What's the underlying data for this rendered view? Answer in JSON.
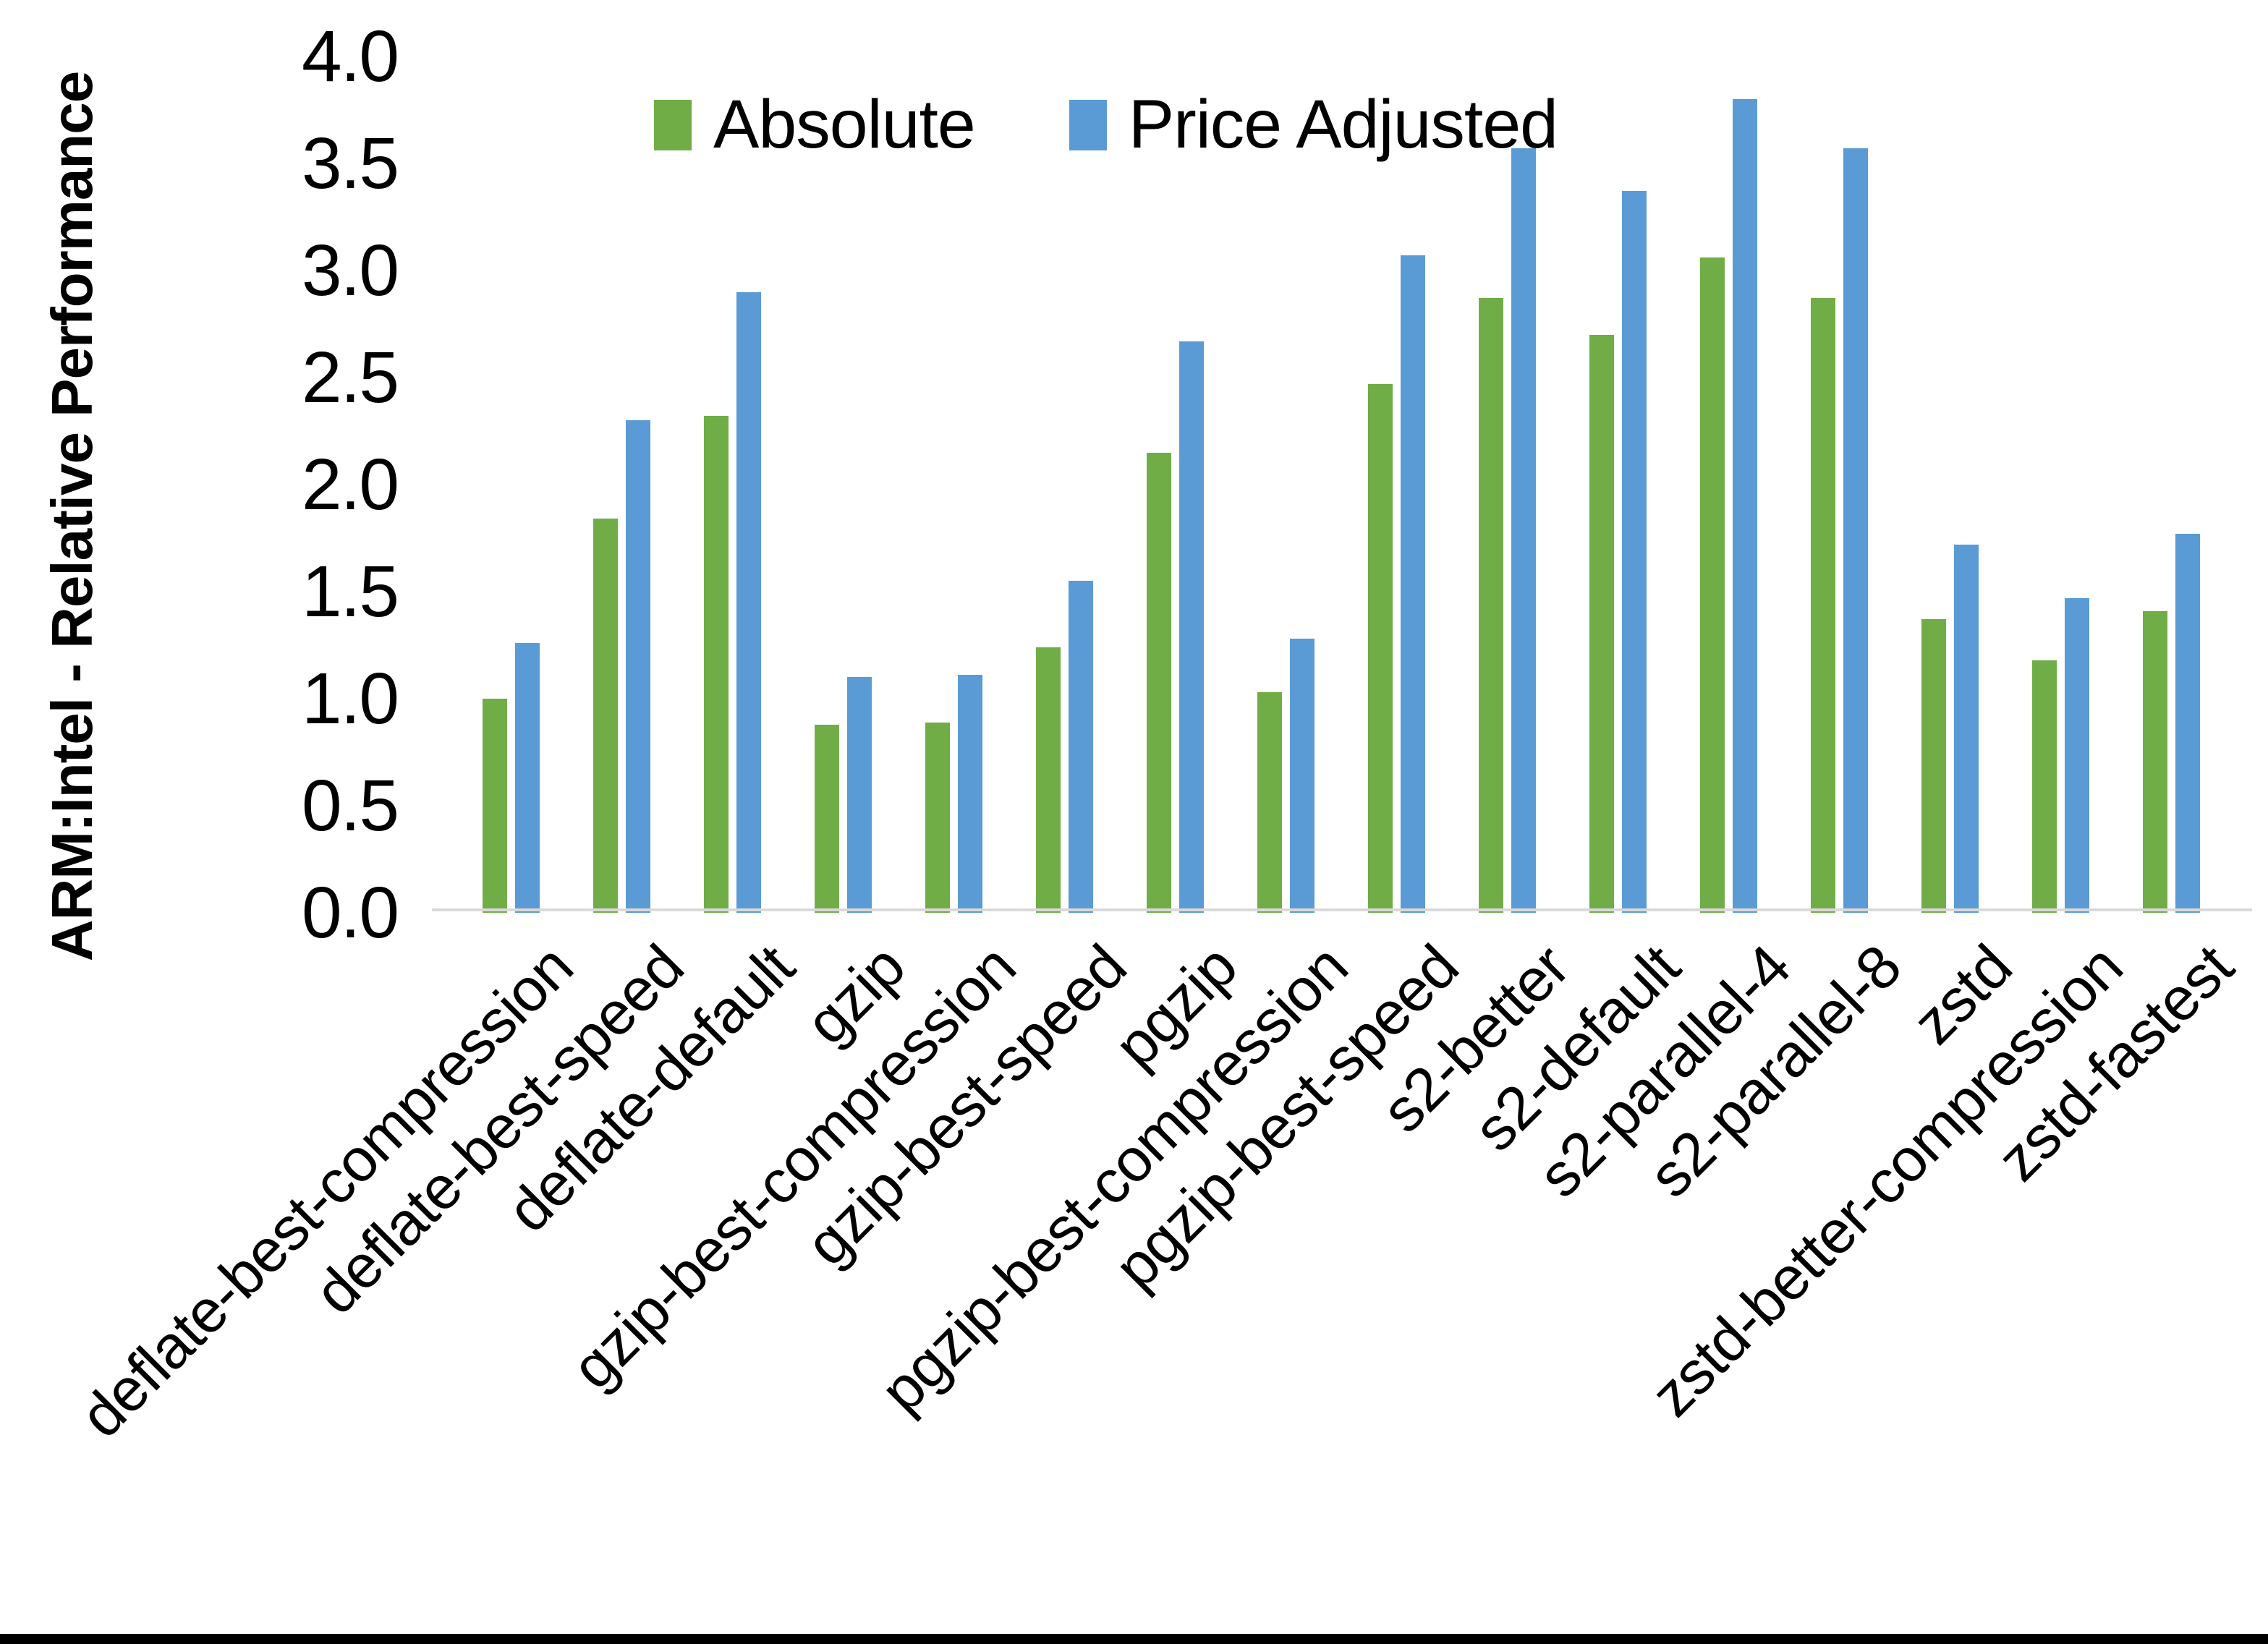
{
  "chart_data": {
    "type": "bar",
    "title": "",
    "ylabel": "ARM:Intel - Relative Performance",
    "xlabel": "",
    "ylim": [
      0.0,
      4.0
    ],
    "ytick_step": 0.5,
    "ytick_labels": [
      "0.0",
      "0.5",
      "1.0",
      "1.5",
      "2.0",
      "2.5",
      "3.0",
      "3.5",
      "4.0"
    ],
    "grid": false,
    "legend_position": "top-center",
    "categories": [
      "deflate-best-compression",
      "deflate-best-speed",
      "deflate-default",
      "gzip",
      "gzip-best-compression",
      "gzip-best-speed",
      "pgzip",
      "pgzip-best-compression",
      "pgzip-best-speed",
      "s2-better",
      "s2-default",
      "s2-parallel-4",
      "s2-parallel-8",
      "zstd",
      "zstd-better-compression",
      "zstd-fastest"
    ],
    "series": [
      {
        "name": "Absolute",
        "color": "#70AD47",
        "values": [
          1.0,
          1.84,
          2.32,
          0.88,
          0.89,
          1.24,
          2.15,
          1.03,
          2.47,
          2.87,
          2.7,
          3.06,
          2.87,
          1.37,
          1.18,
          1.41
        ]
      },
      {
        "name": "Price Adjusted",
        "color": "#5B9BD5",
        "values": [
          1.26,
          2.3,
          2.9,
          1.1,
          1.11,
          1.55,
          2.67,
          1.28,
          3.07,
          3.57,
          3.37,
          3.8,
          3.57,
          1.72,
          1.47,
          1.77
        ]
      }
    ]
  },
  "colors": {
    "background": "#FFFFFF",
    "axis_line": "#D9D9D9",
    "text": "#000000",
    "frame_bottom": "#000000"
  }
}
